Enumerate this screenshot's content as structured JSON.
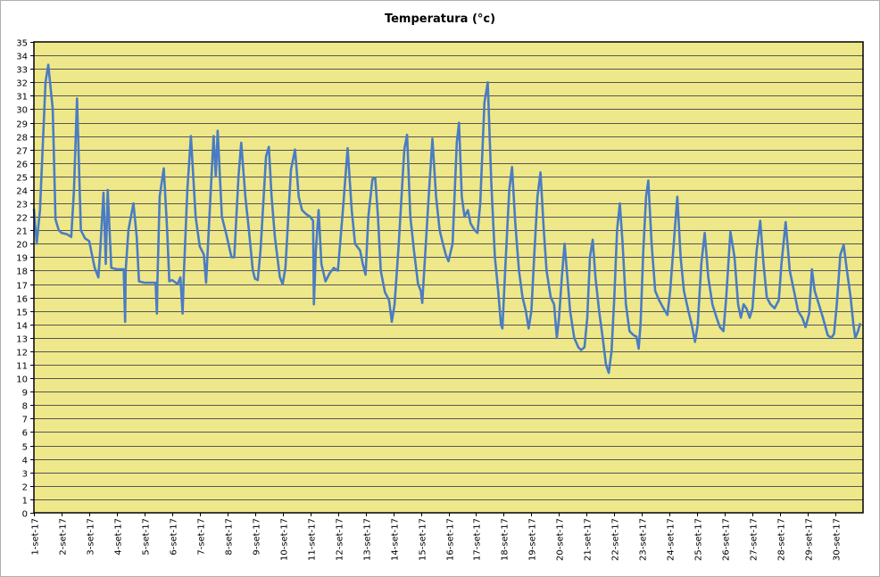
{
  "chart_data": {
    "type": "line",
    "title": "Temperatura (°c)",
    "xlabel": "",
    "ylabel": "",
    "ylim": [
      0,
      35
    ],
    "y_ticks": [
      0,
      1,
      2,
      3,
      4,
      5,
      6,
      7,
      8,
      9,
      10,
      11,
      12,
      13,
      14,
      15,
      16,
      17,
      18,
      19,
      20,
      21,
      22,
      23,
      24,
      25,
      26,
      27,
      28,
      29,
      30,
      31,
      32,
      33,
      34,
      35
    ],
    "x_range_days": [
      1,
      31
    ],
    "x_tick_labels": [
      "1-set-17",
      "2-set-17",
      "3-set-17",
      "4-set-17",
      "5-set-17",
      "6-set-17",
      "7-set-17",
      "8-set-17",
      "9-set-17",
      "10-set-17",
      "11-set-17",
      "12-set-17",
      "13-set-17",
      "14-set-17",
      "15-set-17",
      "16-set-17",
      "17-set-17",
      "18-set-17",
      "19-set-17",
      "20-set-17",
      "21-set-17",
      "22-set-17",
      "23-set-17",
      "24-set-17",
      "25-set-17",
      "26-set-17",
      "27-set-17",
      "28-set-17",
      "29-set-17",
      "30-set-17"
    ],
    "grid": "horizontal",
    "plot_background": "#eee88a",
    "grid_color": "#555555",
    "series": [
      {
        "color": "#4a7cc4",
        "points": [
          [
            1.0,
            22.6
          ],
          [
            1.1,
            20.0
          ],
          [
            1.22,
            22.5
          ],
          [
            1.42,
            32.0
          ],
          [
            1.52,
            33.3
          ],
          [
            1.68,
            30.0
          ],
          [
            1.78,
            21.8
          ],
          [
            1.9,
            21.0
          ],
          [
            2.0,
            20.8
          ],
          [
            2.2,
            20.7
          ],
          [
            2.35,
            20.5
          ],
          [
            2.45,
            24.0
          ],
          [
            2.56,
            30.8
          ],
          [
            2.7,
            21.0
          ],
          [
            2.85,
            20.4
          ],
          [
            3.0,
            20.2
          ],
          [
            3.2,
            18.2
          ],
          [
            3.33,
            17.5
          ],
          [
            3.4,
            19.5
          ],
          [
            3.52,
            23.8
          ],
          [
            3.6,
            18.5
          ],
          [
            3.67,
            24.0
          ],
          [
            3.8,
            18.2
          ],
          [
            4.0,
            18.1
          ],
          [
            4.25,
            18.1
          ],
          [
            4.3,
            14.2
          ],
          [
            4.32,
            18.0
          ],
          [
            4.42,
            21.0
          ],
          [
            4.6,
            23.0
          ],
          [
            4.72,
            20.5
          ],
          [
            4.8,
            17.2
          ],
          [
            5.0,
            17.1
          ],
          [
            5.4,
            17.1
          ],
          [
            5.45,
            14.8
          ],
          [
            5.47,
            17.2
          ],
          [
            5.55,
            23.5
          ],
          [
            5.7,
            25.6
          ],
          [
            5.82,
            21.0
          ],
          [
            5.9,
            17.2
          ],
          [
            6.0,
            17.3
          ],
          [
            6.2,
            17.0
          ],
          [
            6.3,
            17.5
          ],
          [
            6.38,
            14.8
          ],
          [
            6.42,
            17.4
          ],
          [
            6.55,
            24.0
          ],
          [
            6.68,
            28.0
          ],
          [
            6.85,
            22.0
          ],
          [
            7.0,
            19.8
          ],
          [
            7.15,
            19.2
          ],
          [
            7.23,
            17.1
          ],
          [
            7.4,
            24.0
          ],
          [
            7.5,
            28.0
          ],
          [
            7.58,
            25.0
          ],
          [
            7.65,
            28.4
          ],
          [
            7.8,
            22.0
          ],
          [
            7.95,
            20.8
          ],
          [
            8.15,
            19.0
          ],
          [
            8.25,
            19.0
          ],
          [
            8.4,
            25.0
          ],
          [
            8.5,
            27.5
          ],
          [
            8.65,
            23.5
          ],
          [
            8.78,
            21.0
          ],
          [
            8.92,
            18.0
          ],
          [
            9.0,
            17.4
          ],
          [
            9.1,
            17.3
          ],
          [
            9.2,
            19.5
          ],
          [
            9.4,
            26.5
          ],
          [
            9.5,
            27.2
          ],
          [
            9.6,
            23.5
          ],
          [
            9.72,
            20.5
          ],
          [
            9.9,
            17.5
          ],
          [
            10.0,
            17.0
          ],
          [
            10.1,
            18.2
          ],
          [
            10.3,
            25.5
          ],
          [
            10.45,
            27.0
          ],
          [
            10.58,
            23.5
          ],
          [
            10.7,
            22.5
          ],
          [
            10.85,
            22.2
          ],
          [
            11.0,
            22.0
          ],
          [
            11.1,
            21.7
          ],
          [
            11.13,
            15.5
          ],
          [
            11.2,
            19.5
          ],
          [
            11.3,
            22.5
          ],
          [
            11.4,
            18.5
          ],
          [
            11.55,
            17.2
          ],
          [
            11.7,
            17.8
          ],
          [
            11.85,
            18.2
          ],
          [
            12.0,
            18.0
          ],
          [
            12.18,
            22.5
          ],
          [
            12.35,
            27.1
          ],
          [
            12.5,
            22.5
          ],
          [
            12.62,
            20.0
          ],
          [
            12.8,
            19.5
          ],
          [
            12.9,
            18.5
          ],
          [
            13.0,
            17.7
          ],
          [
            13.1,
            22.0
          ],
          [
            13.25,
            24.8
          ],
          [
            13.35,
            24.9
          ],
          [
            13.45,
            22.0
          ],
          [
            13.55,
            18.0
          ],
          [
            13.7,
            16.4
          ],
          [
            13.85,
            15.8
          ],
          [
            13.95,
            14.2
          ],
          [
            14.05,
            15.5
          ],
          [
            14.2,
            20.0
          ],
          [
            14.4,
            27.0
          ],
          [
            14.5,
            28.1
          ],
          [
            14.62,
            22.0
          ],
          [
            14.75,
            19.5
          ],
          [
            14.9,
            17.0
          ],
          [
            15.0,
            16.5
          ],
          [
            15.05,
            15.6
          ],
          [
            15.15,
            19.0
          ],
          [
            15.3,
            24.0
          ],
          [
            15.42,
            27.8
          ],
          [
            15.55,
            23.5
          ],
          [
            15.68,
            21.0
          ],
          [
            15.8,
            20.0
          ],
          [
            15.9,
            19.2
          ],
          [
            16.0,
            18.7
          ],
          [
            16.15,
            20.0
          ],
          [
            16.3,
            27.5
          ],
          [
            16.38,
            29.0
          ],
          [
            16.48,
            23.5
          ],
          [
            16.58,
            22.0
          ],
          [
            16.7,
            22.5
          ],
          [
            16.8,
            21.5
          ],
          [
            16.95,
            21.0
          ],
          [
            17.05,
            20.8
          ],
          [
            17.15,
            23.0
          ],
          [
            17.3,
            30.5
          ],
          [
            17.42,
            32.0
          ],
          [
            17.55,
            24.5
          ],
          [
            17.68,
            19.0
          ],
          [
            17.8,
            16.5
          ],
          [
            17.9,
            14.0
          ],
          [
            17.95,
            13.7
          ],
          [
            18.05,
            18.0
          ],
          [
            18.2,
            24.0
          ],
          [
            18.3,
            25.7
          ],
          [
            18.42,
            21.5
          ],
          [
            18.55,
            18.0
          ],
          [
            18.68,
            16.0
          ],
          [
            18.8,
            15.0
          ],
          [
            18.9,
            13.7
          ],
          [
            19.0,
            15.0
          ],
          [
            19.1,
            19.0
          ],
          [
            19.22,
            23.5
          ],
          [
            19.33,
            25.3
          ],
          [
            19.45,
            21.0
          ],
          [
            19.55,
            18.0
          ],
          [
            19.7,
            16.0
          ],
          [
            19.82,
            15.5
          ],
          [
            19.92,
            13.0
          ],
          [
            20.0,
            14.5
          ],
          [
            20.1,
            17.5
          ],
          [
            20.2,
            20.0
          ],
          [
            20.3,
            17.5
          ],
          [
            20.4,
            15.0
          ],
          [
            20.55,
            13.0
          ],
          [
            20.7,
            12.3
          ],
          [
            20.8,
            12.1
          ],
          [
            20.92,
            12.3
          ],
          [
            21.02,
            14.5
          ],
          [
            21.12,
            19.0
          ],
          [
            21.22,
            20.3
          ],
          [
            21.32,
            17.5
          ],
          [
            21.45,
            15.0
          ],
          [
            21.58,
            13.0
          ],
          [
            21.7,
            11.0
          ],
          [
            21.8,
            10.4
          ],
          [
            21.9,
            12.0
          ],
          [
            22.0,
            16.0
          ],
          [
            22.1,
            21.0
          ],
          [
            22.2,
            23.0
          ],
          [
            22.3,
            20.0
          ],
          [
            22.42,
            15.5
          ],
          [
            22.55,
            13.5
          ],
          [
            22.7,
            13.2
          ],
          [
            22.8,
            13.1
          ],
          [
            22.88,
            12.2
          ],
          [
            22.95,
            14.0
          ],
          [
            23.05,
            19.5
          ],
          [
            23.15,
            23.5
          ],
          [
            23.23,
            24.7
          ],
          [
            23.35,
            20.0
          ],
          [
            23.48,
            16.5
          ],
          [
            23.62,
            15.8
          ],
          [
            23.78,
            15.2
          ],
          [
            23.92,
            14.7
          ],
          [
            24.02,
            16.5
          ],
          [
            24.15,
            20.0
          ],
          [
            24.28,
            23.5
          ],
          [
            24.4,
            19.0
          ],
          [
            24.52,
            16.5
          ],
          [
            24.68,
            15.0
          ],
          [
            24.8,
            14.0
          ],
          [
            24.92,
            12.7
          ],
          [
            25.02,
            14.0
          ],
          [
            25.15,
            18.5
          ],
          [
            25.27,
            20.8
          ],
          [
            25.4,
            17.5
          ],
          [
            25.55,
            15.5
          ],
          [
            25.7,
            14.5
          ],
          [
            25.82,
            13.8
          ],
          [
            25.95,
            13.5
          ],
          [
            26.05,
            16.0
          ],
          [
            26.2,
            20.9
          ],
          [
            26.35,
            19.0
          ],
          [
            26.48,
            15.5
          ],
          [
            26.58,
            14.5
          ],
          [
            26.68,
            15.5
          ],
          [
            26.78,
            15.2
          ],
          [
            26.9,
            14.5
          ],
          [
            27.0,
            15.2
          ],
          [
            27.15,
            19.5
          ],
          [
            27.28,
            21.7
          ],
          [
            27.4,
            18.5
          ],
          [
            27.52,
            16.0
          ],
          [
            27.65,
            15.5
          ],
          [
            27.8,
            15.2
          ],
          [
            27.95,
            15.8
          ],
          [
            28.05,
            18.5
          ],
          [
            28.2,
            21.6
          ],
          [
            28.35,
            18.0
          ],
          [
            28.5,
            16.5
          ],
          [
            28.65,
            15.0
          ],
          [
            28.8,
            14.5
          ],
          [
            28.92,
            13.8
          ],
          [
            29.05,
            14.8
          ],
          [
            29.15,
            18.1
          ],
          [
            29.25,
            16.5
          ],
          [
            29.4,
            15.5
          ],
          [
            29.55,
            14.5
          ],
          [
            29.72,
            13.2
          ],
          [
            29.85,
            13.0
          ],
          [
            29.95,
            13.3
          ],
          [
            30.05,
            15.5
          ],
          [
            30.18,
            19.2
          ],
          [
            30.3,
            19.9
          ],
          [
            30.42,
            18.0
          ],
          [
            30.55,
            16.0
          ],
          [
            30.65,
            14.0
          ],
          [
            30.72,
            13.0
          ],
          [
            30.82,
            13.5
          ],
          [
            30.9,
            14.1
          ]
        ]
      }
    ]
  }
}
